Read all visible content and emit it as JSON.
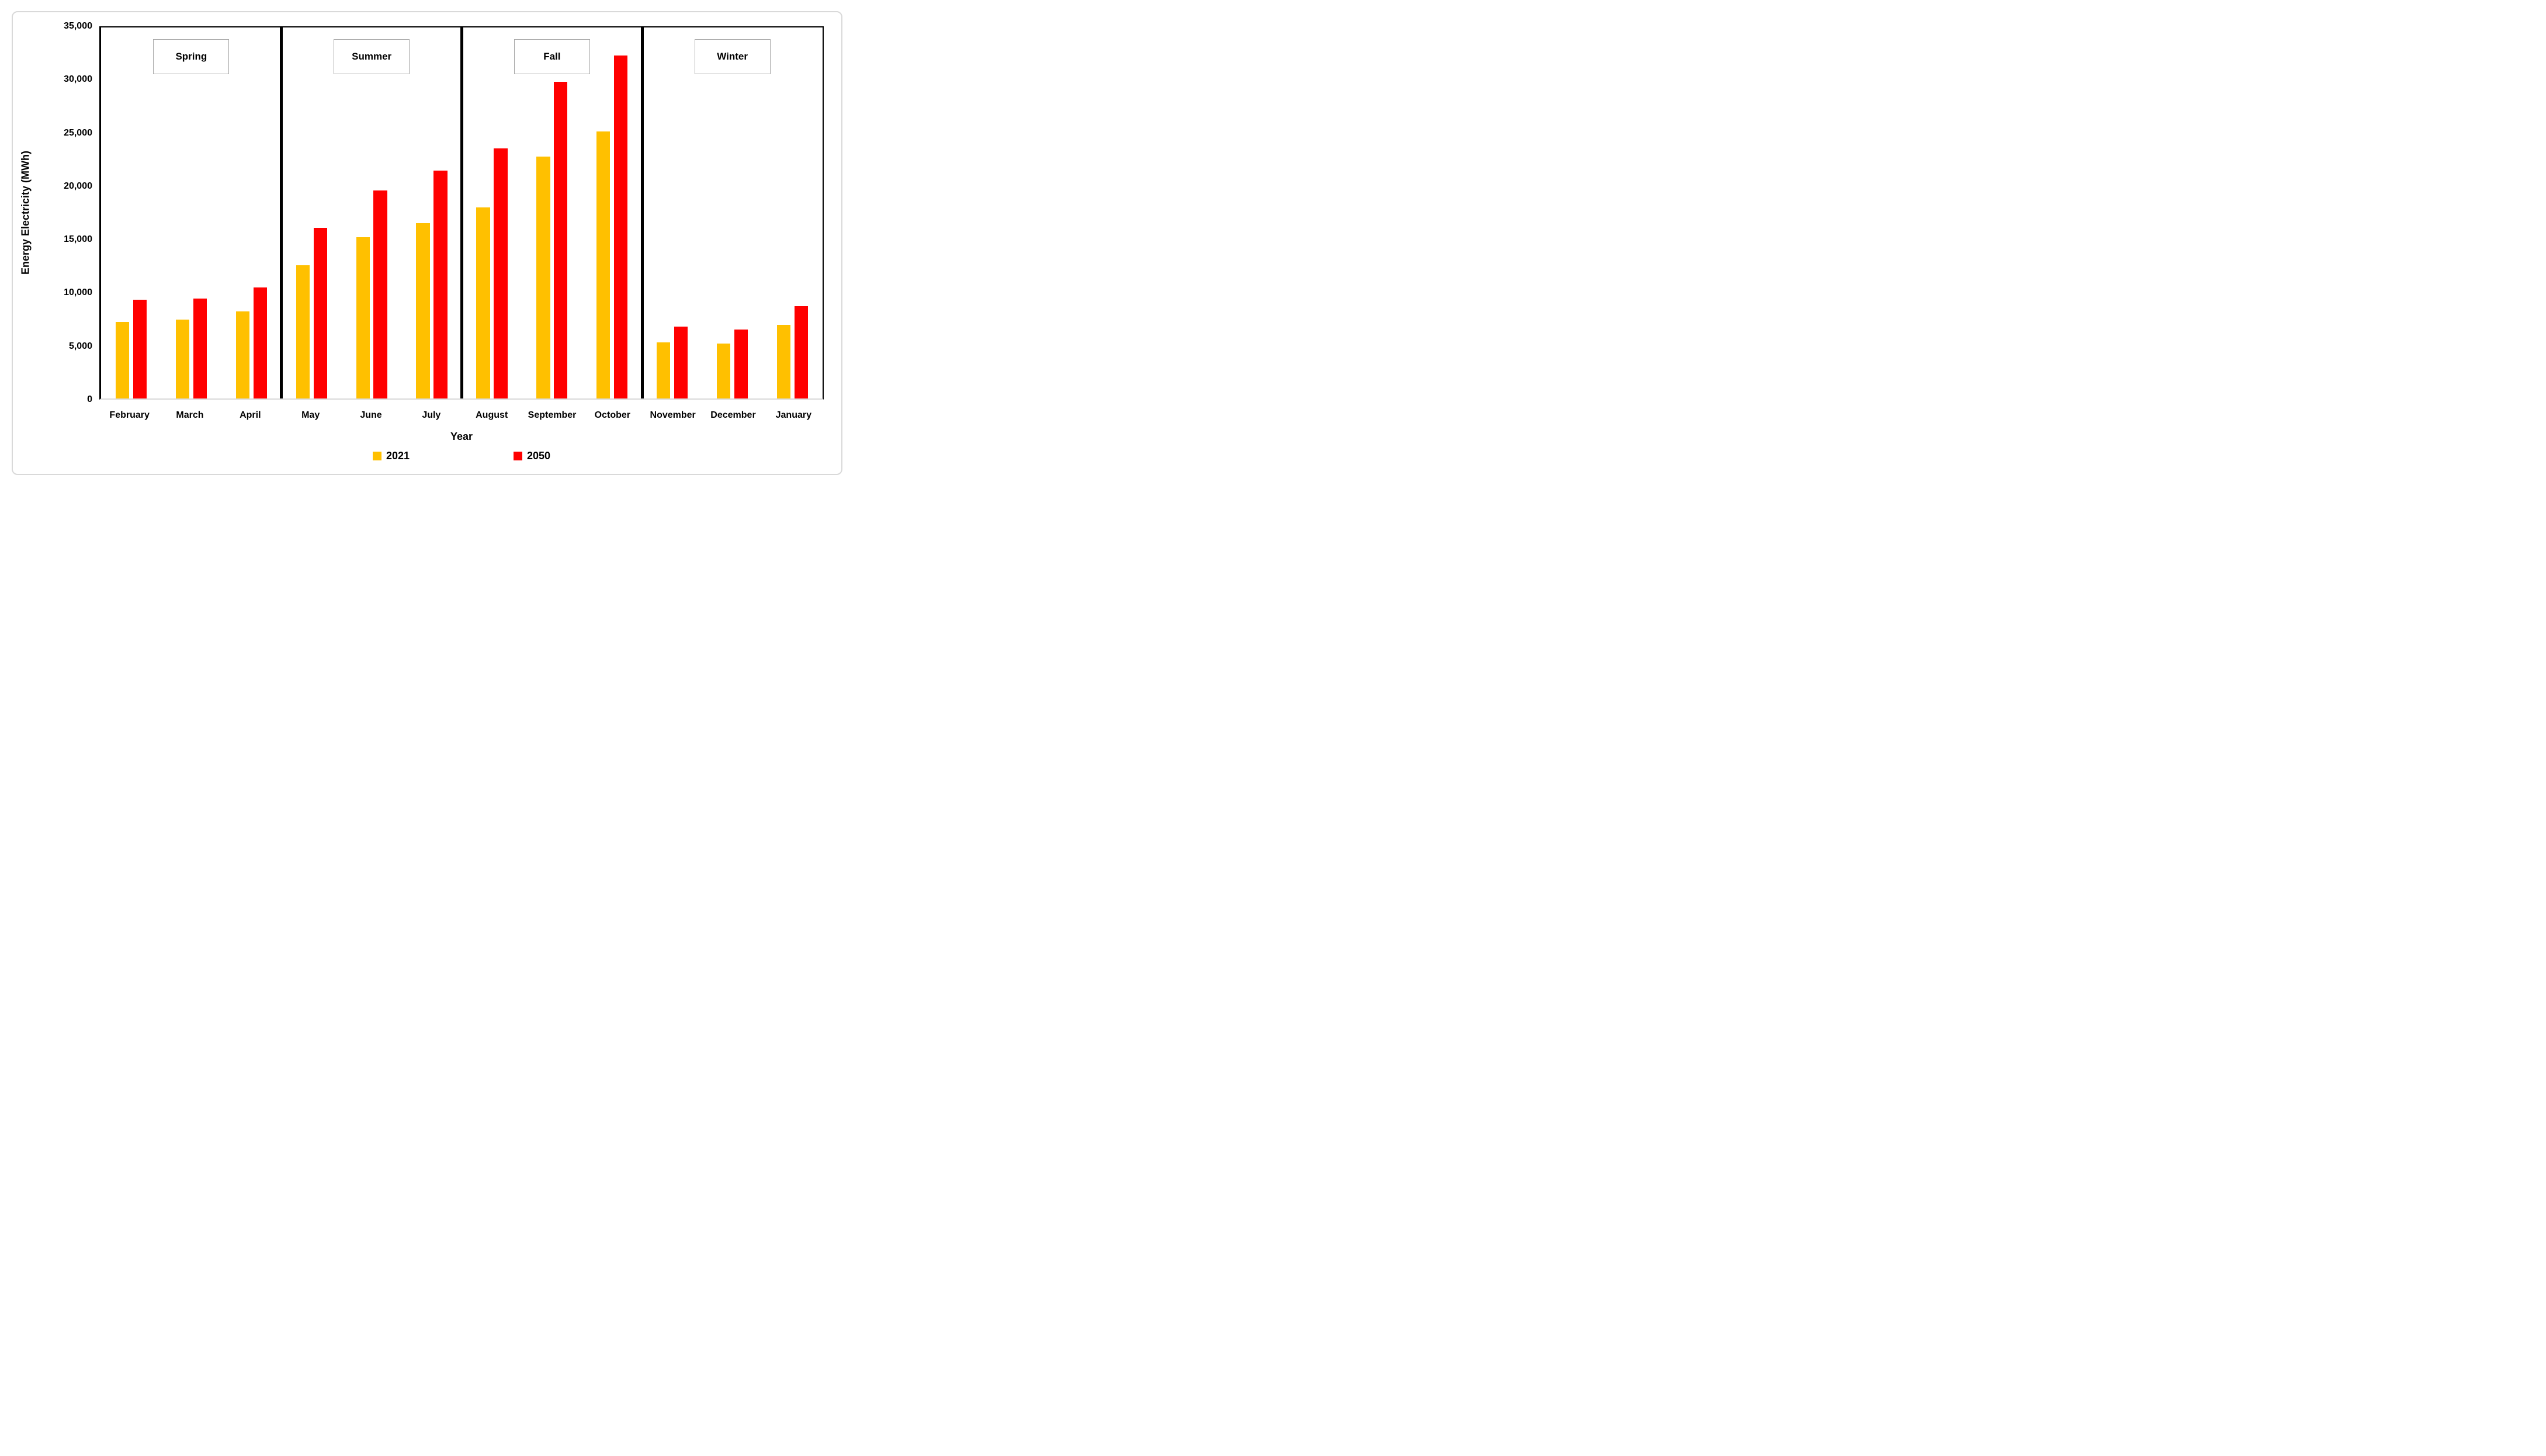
{
  "figure": {
    "y_axis_title": "Energy Electricity (MWh)",
    "x_axis_title": "Year"
  },
  "legend": {
    "items": [
      {
        "label": "2021",
        "color": "#FFC000"
      },
      {
        "label": "2050",
        "color": "#FF0000"
      }
    ]
  },
  "chart_data": {
    "type": "bar",
    "title": "",
    "xlabel": "Year",
    "ylabel": "Energy Electricity (MWh)",
    "ylim": [
      0,
      35000
    ],
    "ytick_interval": 5000,
    "ytick_labels": [
      "0",
      "5,000",
      "10,000",
      "15,000",
      "20,000",
      "25,000",
      "30,000",
      "35,000"
    ],
    "grid": false,
    "legend_position": "bottom-center",
    "seasons": [
      {
        "label": "Spring",
        "months": [
          "February",
          "March",
          "April"
        ]
      },
      {
        "label": "Summer",
        "months": [
          "May",
          "June",
          "July"
        ]
      },
      {
        "label": "Fall",
        "months": [
          "August",
          "September",
          "October"
        ]
      },
      {
        "label": "Winter",
        "months": [
          "November",
          "December",
          "January"
        ]
      }
    ],
    "categories": [
      "February",
      "March",
      "April",
      "May",
      "June",
      "July",
      "August",
      "September",
      "October",
      "November",
      "December",
      "January"
    ],
    "series": [
      {
        "name": "2021",
        "color": "#FFC000",
        "values": [
          7200,
          7450,
          8200,
          12550,
          15200,
          16550,
          18000,
          22800,
          25200,
          5300,
          5200,
          6950
        ]
      },
      {
        "name": "2050",
        "color": "#FF0000",
        "values": [
          9300,
          9400,
          10450,
          16100,
          19600,
          21500,
          23600,
          29850,
          32350,
          6800,
          6500,
          8700
        ]
      }
    ]
  }
}
